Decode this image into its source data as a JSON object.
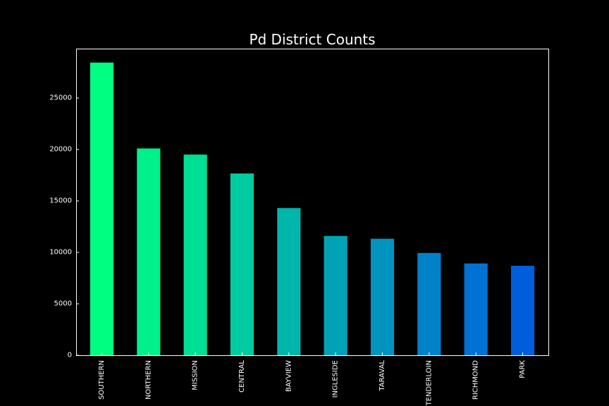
{
  "chart_data": {
    "type": "bar",
    "title": "Pd District Counts",
    "xlabel": "",
    "ylabel": "",
    "categories": [
      "SOUTHERN",
      "NORTHERN",
      "MISSION",
      "CENTRAL",
      "BAYVIEW",
      "INGLESIDE",
      "TARAVAL",
      "TENDERLOIN",
      "RICHMOND",
      "PARK"
    ],
    "values": [
      28445,
      20100,
      19503,
      17666,
      14303,
      11594,
      11325,
      9942,
      8922,
      8699
    ],
    "bar_colors": [
      "#00ff80",
      "#00f08a",
      "#00e094",
      "#00cc9f",
      "#00b6ab",
      "#00a3b5",
      "#0094bf",
      "#0082c9",
      "#0072d3",
      "#005ddc"
    ],
    "ylim": [
      0,
      29800
    ],
    "yticks": [
      0,
      5000,
      10000,
      15000,
      20000,
      25000
    ],
    "grid": false,
    "legend": "none",
    "background": "#000000",
    "foreground": "#ffffff"
  }
}
